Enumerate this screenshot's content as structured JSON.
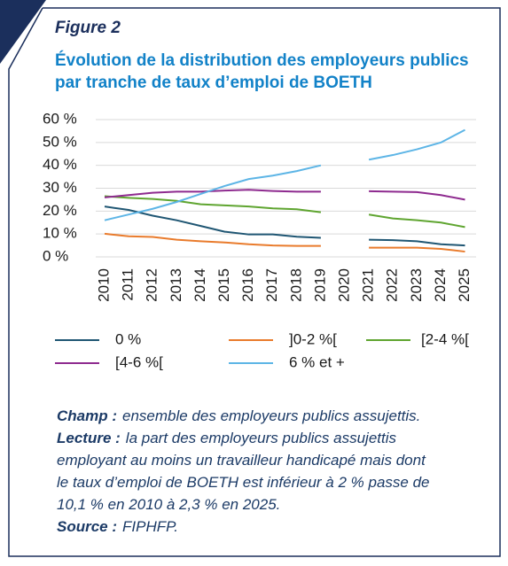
{
  "chart_data": {
    "type": "line",
    "figure_label": "Figure 2",
    "title_lines": [
      "Évolution de la distribution des employeurs publics",
      "par tranche de taux d’emploi de BOETH"
    ],
    "categories": [
      "2010",
      "2011",
      "2012",
      "2013",
      "2014",
      "2015",
      "2016",
      "2017",
      "2018",
      "2019",
      "2020",
      "2021",
      "2022",
      "2023",
      "2024",
      "2025"
    ],
    "series": [
      {
        "name": "0 %",
        "color": "#1f5673",
        "values": [
          22,
          20.5,
          18,
          16,
          13.5,
          11,
          9.8,
          9.8,
          8.8,
          8.3,
          null,
          7.5,
          7.3,
          6.8,
          5.5,
          5
        ]
      },
      {
        "name": "]0-2 %[",
        "color": "#e97b2c",
        "values": [
          10.1,
          9,
          8.7,
          7.5,
          6.8,
          6.3,
          5.5,
          5,
          4.8,
          4.8,
          null,
          4,
          4,
          4,
          3.5,
          2.3
        ]
      },
      {
        "name": "[2-4 %[",
        "color": "#5fa530",
        "values": [
          26.5,
          25.8,
          25.3,
          24.5,
          23,
          22.5,
          22,
          21.2,
          20.8,
          19.5,
          null,
          18.5,
          16.8,
          16,
          15,
          13
        ]
      },
      {
        "name": "[4-6 %[",
        "color": "#8e2a8f",
        "values": [
          26,
          27,
          28,
          28.5,
          28.5,
          29,
          29.3,
          28.8,
          28.5,
          28.5,
          null,
          28.7,
          28.5,
          28.3,
          27,
          25
        ]
      },
      {
        "name": "6 % et +",
        "color": "#5db5e6",
        "values": [
          16,
          18.5,
          21,
          24,
          27.5,
          31,
          34,
          35.5,
          37.5,
          40,
          null,
          42.5,
          44.5,
          47,
          50,
          55.5
        ]
      }
    ],
    "ylim": [
      0,
      60
    ],
    "yticks": [
      {
        "value": 0,
        "label": "0 %"
      },
      {
        "value": 10,
        "label": "10 %"
      },
      {
        "value": 20,
        "label": "20 %"
      },
      {
        "value": 30,
        "label": "30 %"
      },
      {
        "value": 40,
        "label": "40 %"
      },
      {
        "value": 50,
        "label": "50 %"
      },
      {
        "value": 60,
        "label": "60 %"
      }
    ],
    "grid": true,
    "notes": [
      {
        "label": "Champ :",
        "lines": [
          "ensemble des employeurs publics assujettis."
        ]
      },
      {
        "label": "Lecture :",
        "lines": [
          "la part des employeurs publics assujettis",
          "employant au moins un travailleur handicapé mais dont",
          "le taux d’emploi de BOETH est inférieur à 2 % passe de",
          "10,1 % en 2010 à 2,3 % en 2025."
        ]
      },
      {
        "label": "Source :",
        "lines": [
          "FIPHFP."
        ]
      }
    ]
  }
}
